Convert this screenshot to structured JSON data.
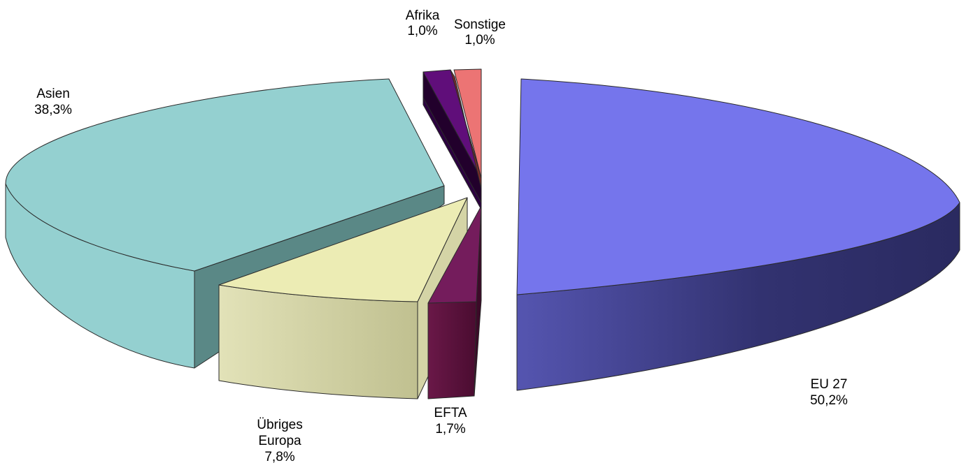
{
  "chart_data": {
    "type": "pie",
    "style": "3d-exploded",
    "title": "",
    "slices": [
      {
        "name": "EU 27",
        "label": "50,2%",
        "value": 50.2,
        "color": "#7575ec"
      },
      {
        "name": "EFTA",
        "label": "1,7%",
        "value": 1.7,
        "color": "#741c5c"
      },
      {
        "name": "Übriges Europa",
        "label": "7,8%",
        "value": 7.8,
        "color": "#ececb4"
      },
      {
        "name": "Asien",
        "label": "38,3%",
        "value": 38.3,
        "color": "#94d0d0"
      },
      {
        "name": "Afrika",
        "label": "1,0%",
        "value": 1.0,
        "color": "#600e7a"
      },
      {
        "name": "Sonstige",
        "label": "1,0%",
        "value": 1.0,
        "color": "#ec7474"
      }
    ]
  }
}
